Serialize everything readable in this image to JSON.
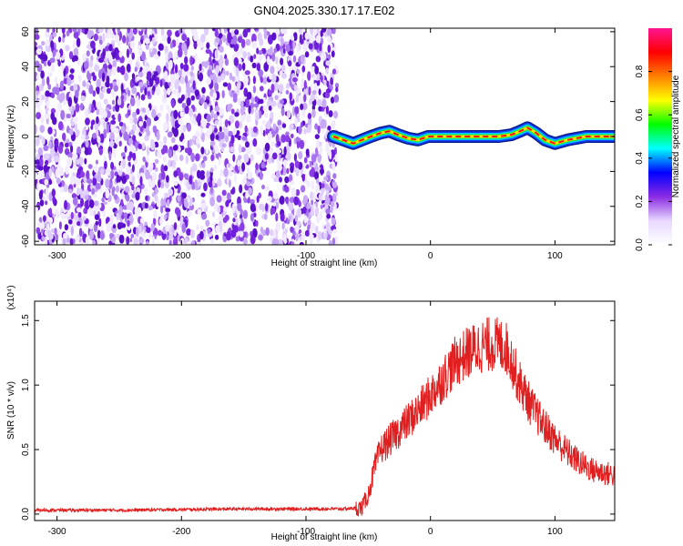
{
  "title": "GN04.2025.330.17.17.E02",
  "colors": {
    "signal_line": "#e02020",
    "axis": "#000000",
    "background": "#ffffff"
  },
  "chart_data": [
    {
      "type": "heatmap",
      "title": "GN04.2025.330.17.17.E02",
      "xlabel": "Height of straight line (km)",
      "ylabel": "Frequency (Hz)",
      "xlim": [
        -318,
        148
      ],
      "ylim": [
        -62,
        62
      ],
      "x_ticks": [
        "-300",
        "-200",
        "-100",
        "0",
        "100"
      ],
      "y_ticks": [
        "-60",
        "-40",
        "-20",
        "0",
        "20",
        "40",
        "60"
      ],
      "colorbar": {
        "label": "Normalized spectral amplitude",
        "range": [
          0,
          1
        ],
        "ticks": [
          "0.0",
          "0.2",
          "0.4",
          "0.6",
          "0.8"
        ],
        "colormap": [
          "#ffffff",
          "#e8d8ff",
          "#8a2be2",
          "#0000ff",
          "#00ffff",
          "#00ff00",
          "#ffff00",
          "#ff8000",
          "#ff0000",
          "#ff1493"
        ]
      },
      "noise_region_x": [
        -318,
        -75
      ],
      "ridge": {
        "x": [
          -78,
          -70,
          -62,
          -55,
          -48,
          -40,
          -33,
          -26,
          -18,
          -10,
          -2,
          10,
          25,
          40,
          55,
          65,
          72,
          78,
          85,
          92,
          100,
          110,
          125,
          148
        ],
        "y": [
          0,
          -2,
          -4,
          -2,
          0,
          2,
          3,
          1,
          -1,
          -2,
          0,
          0,
          0,
          0,
          0,
          1,
          3,
          5,
          2,
          -2,
          -4,
          -2,
          0,
          0
        ]
      },
      "grid": false
    },
    {
      "type": "line",
      "xlabel": "Height of straight line (km)",
      "ylabel": "SNR (10 * v/v)",
      "y_multiplier": "(x10⁴)",
      "xlim": [
        -318,
        148
      ],
      "ylim": [
        -0.05,
        1.65
      ],
      "x_ticks": [
        "-300",
        "-200",
        "-100",
        "0",
        "100"
      ],
      "y_ticks": [
        "0.0",
        "0.5",
        "1.0",
        "1.5"
      ],
      "series": [
        {
          "values_envelope": {
            "x": [
              -318,
              -250,
              -150,
              -70,
              -55,
              -50,
              -45,
              -40,
              -30,
              -20,
              -10,
              0,
              10,
              20,
              30,
              40,
              50,
              60,
              65,
              70,
              80,
              90,
              100,
              110,
              120,
              130,
              148
            ],
            "y": [
              0.03,
              0.03,
              0.04,
              0.04,
              0.05,
              0.15,
              0.35,
              0.5,
              0.6,
              0.7,
              0.8,
              0.92,
              1.05,
              1.18,
              1.25,
              1.3,
              1.32,
              1.3,
              1.2,
              1.05,
              0.85,
              0.7,
              0.58,
              0.48,
              0.4,
              0.34,
              0.3
            ]
          },
          "color": "#e02020"
        }
      ],
      "grid": false
    }
  ]
}
